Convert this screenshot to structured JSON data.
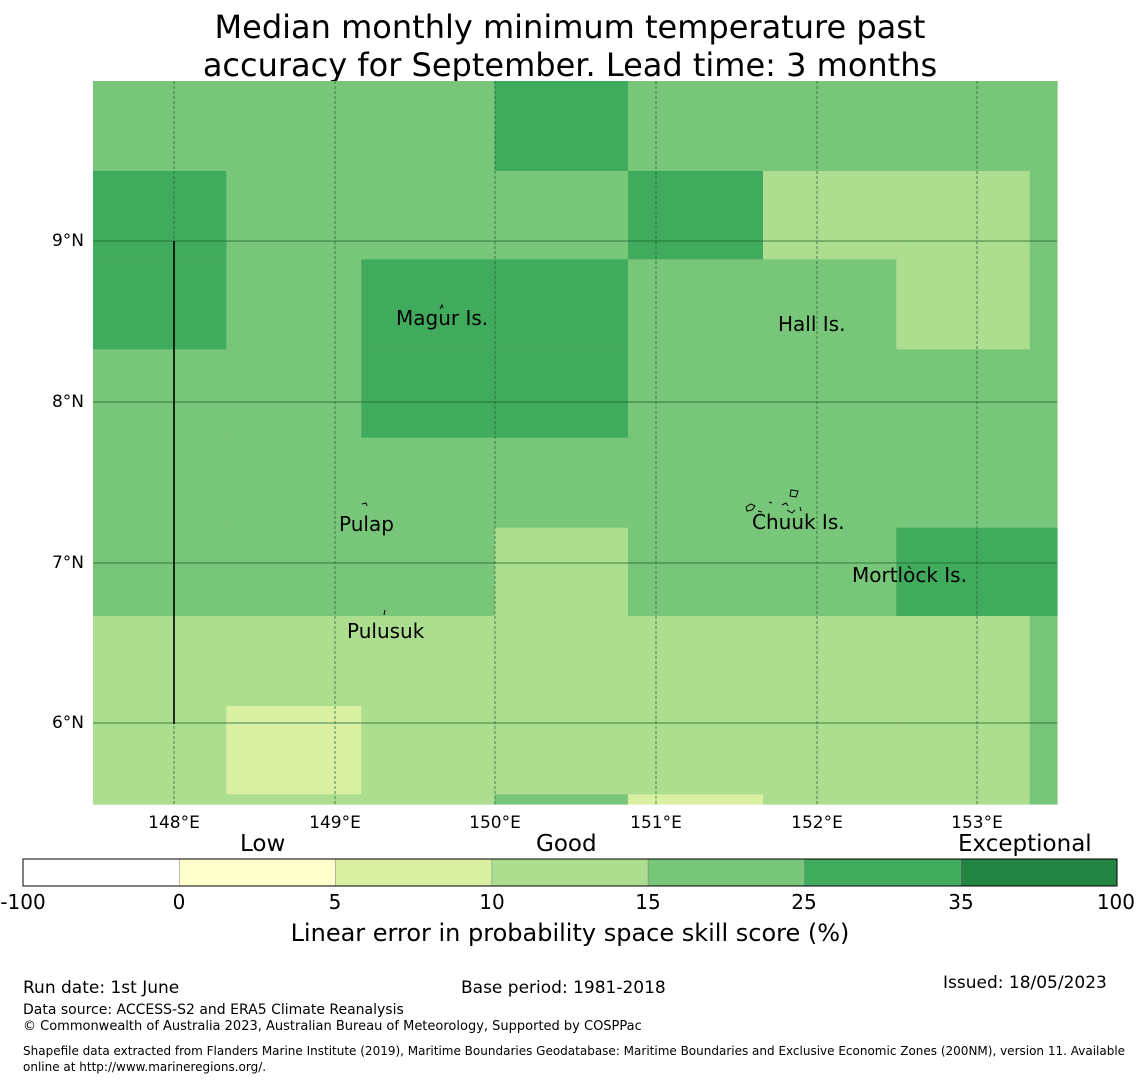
{
  "title_line1": "Median monthly minimum temperature past",
  "title_line2": "accuracy for September. Lead time: 3 months",
  "map": {
    "lat_labels": [
      "9°N",
      "8°N",
      "7°N",
      "6°N"
    ],
    "lon_labels": [
      "148°E",
      "149°E",
      "150°E",
      "151°E",
      "152°E",
      "153°E"
    ],
    "islands": [
      "Magur Is.",
      "Hall Is.",
      "Pulap",
      "Chuuk Is.",
      "Mortlock Is.",
      "Pulusuk"
    ],
    "skill_grid": {
      "lon_edges": [
        147.5,
        148.33,
        149.17,
        150.0,
        150.83,
        151.67,
        152.5,
        153.33,
        153.5
      ],
      "lat_edges": [
        10.0,
        9.44,
        8.89,
        8.33,
        7.78,
        7.22,
        6.67,
        6.11,
        5.56,
        5.5
      ],
      "classes": [
        [
          4,
          4,
          4,
          5,
          4,
          4,
          4,
          4
        ],
        [
          5,
          4,
          4,
          4,
          5,
          3,
          3,
          4
        ],
        [
          5,
          4,
          5,
          5,
          4,
          4,
          3,
          4
        ],
        [
          4,
          4,
          5,
          5,
          4,
          4,
          4,
          4
        ],
        [
          4,
          4,
          4,
          4,
          4,
          4,
          4,
          4
        ],
        [
          4,
          4,
          4,
          3,
          4,
          4,
          5,
          5
        ],
        [
          3,
          3,
          3,
          3,
          3,
          3,
          3,
          4
        ],
        [
          3,
          2,
          3,
          3,
          3,
          3,
          3,
          4
        ],
        [
          3,
          3,
          3,
          4,
          2,
          3,
          3,
          4
        ]
      ]
    },
    "colors": [
      "#ffffff",
      "#ffffcc",
      "#d9f0a3",
      "#addd8e",
      "#78c679",
      "#41ab5d",
      "#238443"
    ]
  },
  "legend": {
    "categories": [
      "Low",
      "Good",
      "Exceptional"
    ],
    "ticks": [
      "-100",
      "0",
      "5",
      "10",
      "15",
      "25",
      "35",
      "100"
    ],
    "title": "Linear error in probability space skill score (%)"
  },
  "footer": {
    "run_date": "Run date: 1st June",
    "base_period": "Base period: 1981-2018",
    "issued": "Issued: 18/05/2023",
    "data_source": "Data source: ACCESS-S2 and ERA5 Climate Reanalysis",
    "copyright": "© Commonwealth of Australia 2023, Australian Bureau of Meteorology, Supported by COSPPac",
    "shapefile_line1": "Shapefile data extracted from Flanders Marine Institute (2019), Maritime Boundaries Geodatabase: Maritime Boundaries and Exclusive Economic Zones (200NM), version 11. Available",
    "shapefile_line2": "online at http://www.marineregions.org/."
  }
}
